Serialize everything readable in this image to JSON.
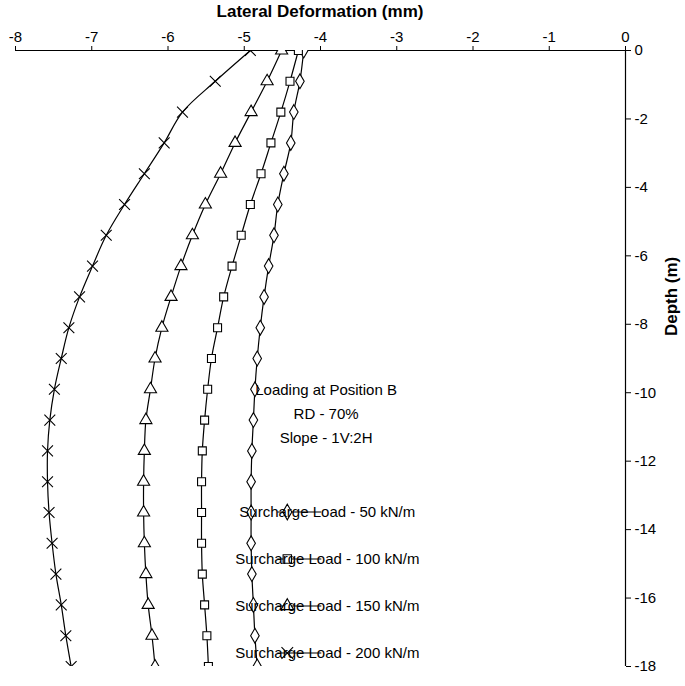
{
  "chart_data": {
    "type": "line",
    "x_label": "Lateral Deformation (mm)",
    "y_label": "Depth (m)",
    "xlim": [
      -8,
      0
    ],
    "xticks": [
      -8,
      -7,
      -6,
      -5,
      -4,
      -3,
      -2,
      -1,
      0
    ],
    "ylim": [
      -18,
      0
    ],
    "yticks": [
      -18,
      -16,
      -14,
      -12,
      -10,
      -8,
      -6,
      -4,
      -2,
      0
    ],
    "grid": false,
    "legend": "lower right",
    "annotations": [
      "Loading at Position B",
      "RD - 70%",
      "Slope - 1V:2H"
    ],
    "y": [
      0,
      -0.9,
      -1.8,
      -2.7,
      -3.6,
      -4.5,
      -5.4,
      -6.3,
      -7.2,
      -8.1,
      -9,
      -9.9,
      -10.8,
      -11.7,
      -12.6,
      -13.5,
      -14.4,
      -15.3,
      -16.2,
      -17.1,
      -18
    ],
    "series": [
      {
        "name": "Surcharge Load - 50 kN/m",
        "color": "#000000",
        "marker": "diamond",
        "line_style": "solid",
        "values": [
          -4.22,
          -4.27,
          -4.35,
          -4.39,
          -4.48,
          -4.56,
          -4.61,
          -4.68,
          -4.74,
          -4.79,
          -4.83,
          -4.86,
          -4.88,
          -4.9,
          -4.91,
          -4.91,
          -4.91,
          -4.9,
          -4.88,
          -4.86,
          -4.83
        ]
      },
      {
        "name": "Surcharge Load - 100 kN/m",
        "color": "#000000",
        "marker": "square",
        "line_style": "solid",
        "values": [
          -4.29,
          -4.4,
          -4.52,
          -4.65,
          -4.78,
          -4.92,
          -5.04,
          -5.16,
          -5.27,
          -5.35,
          -5.43,
          -5.48,
          -5.52,
          -5.55,
          -5.56,
          -5.56,
          -5.56,
          -5.55,
          -5.52,
          -5.49,
          -5.47
        ]
      },
      {
        "name": "Surcharge Load - 150 kN/m",
        "color": "#000000",
        "marker": "triangle",
        "line_style": "solid",
        "values": [
          -4.51,
          -4.7,
          -4.91,
          -5.12,
          -5.31,
          -5.51,
          -5.68,
          -5.83,
          -5.96,
          -6.08,
          -6.17,
          -6.23,
          -6.29,
          -6.31,
          -6.32,
          -6.32,
          -6.31,
          -6.29,
          -6.26,
          -6.21,
          -6.17
        ]
      },
      {
        "name": "Surcharge Load - 200 kN/m",
        "color": "#000000",
        "marker": "x",
        "line_style": "solid",
        "values": [
          -4.92,
          -5.38,
          -5.81,
          -6.05,
          -6.31,
          -6.57,
          -6.81,
          -6.99,
          -7.16,
          -7.3,
          -7.4,
          -7.49,
          -7.55,
          -7.58,
          -7.58,
          -7.56,
          -7.52,
          -7.47,
          -7.4,
          -7.34,
          -7.27
        ]
      }
    ]
  }
}
